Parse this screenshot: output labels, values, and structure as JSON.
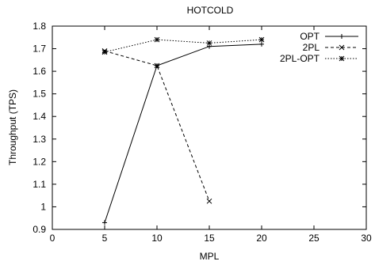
{
  "chart_data": {
    "type": "line",
    "title": "HOTCOLD",
    "xlabel": "MPL",
    "ylabel": "Throughput (TPS)",
    "xlim": [
      0,
      30
    ],
    "ylim": [
      0.9,
      1.8
    ],
    "xticks": [
      0,
      5,
      10,
      15,
      20,
      25,
      30
    ],
    "yticks": [
      0.9,
      1,
      1.1,
      1.2,
      1.3,
      1.4,
      1.5,
      1.6,
      1.7,
      1.8
    ],
    "grid": false,
    "legend_position": "top-right",
    "series": [
      {
        "name": "OPT",
        "x": [
          5,
          10,
          15,
          20
        ],
        "y": [
          0.93,
          1.625,
          1.71,
          1.72
        ],
        "line_style": "solid",
        "marker": "plus"
      },
      {
        "name": "2PL",
        "x": [
          5,
          10,
          15
        ],
        "y": [
          1.69,
          1.625,
          1.025
        ],
        "line_style": "dashed",
        "marker": "cross"
      },
      {
        "name": "2PL-OPT",
        "x": [
          5,
          10,
          15,
          20
        ],
        "y": [
          1.685,
          1.74,
          1.725,
          1.74
        ],
        "line_style": "dotted",
        "marker": "star"
      }
    ]
  }
}
